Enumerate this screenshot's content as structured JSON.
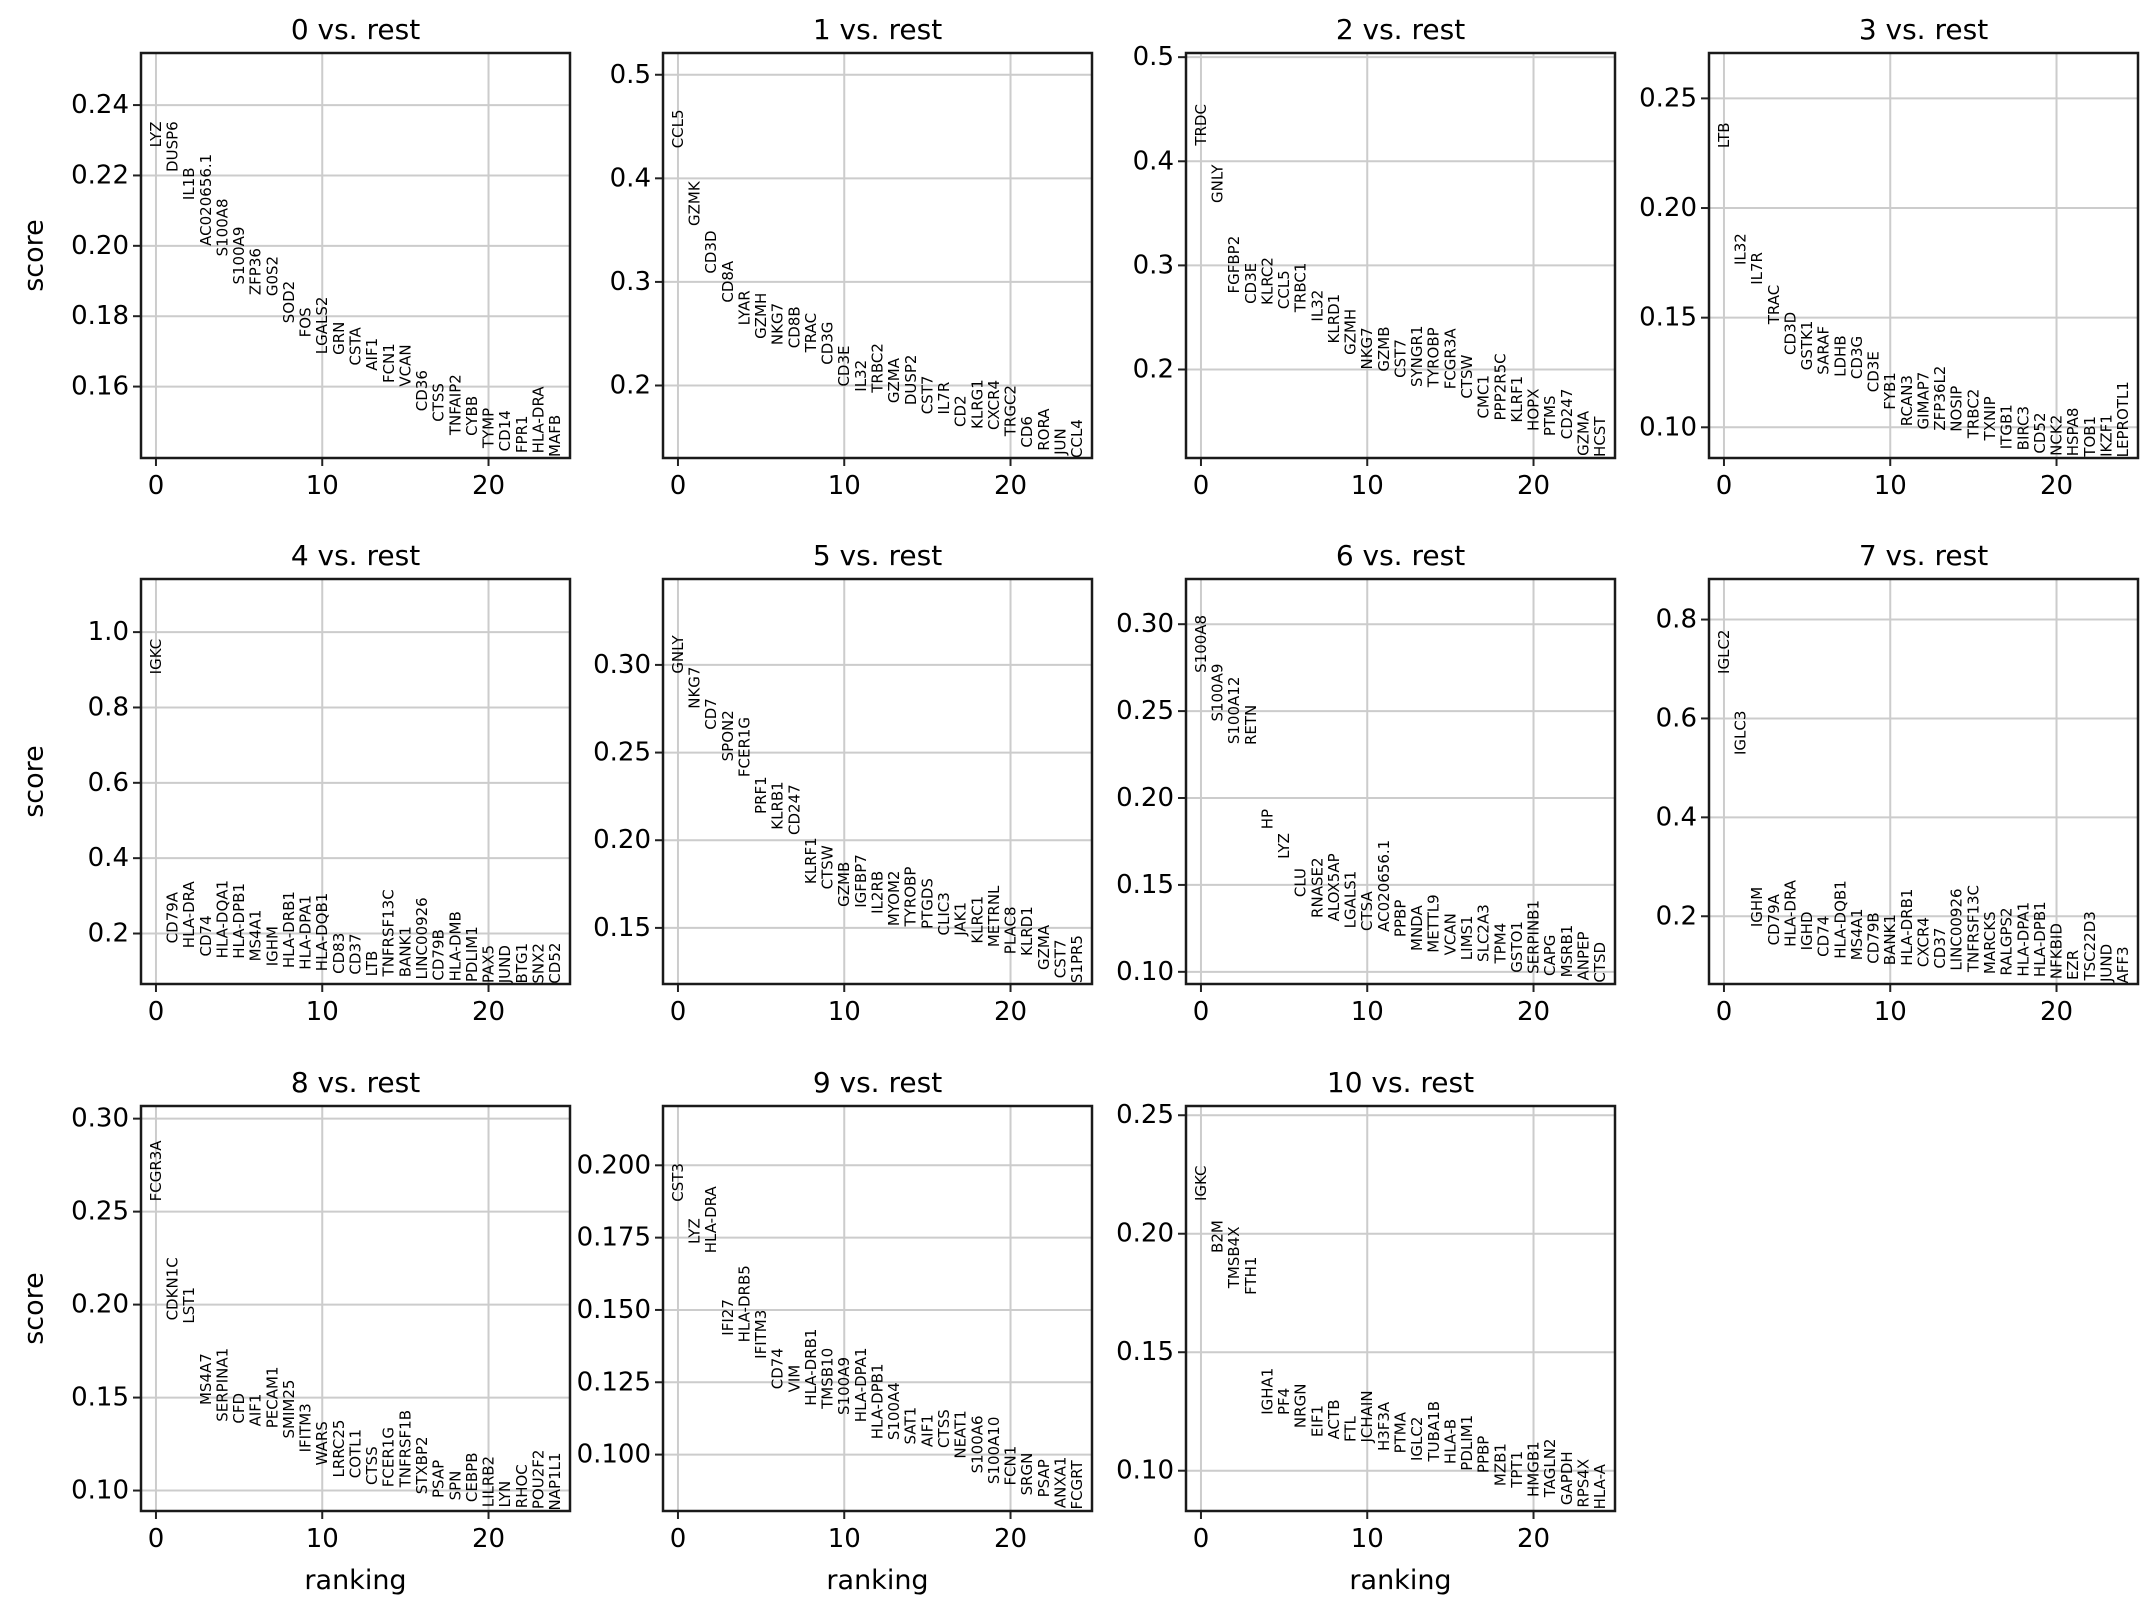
{
  "chart_data": {
    "type": "scatter",
    "layout": "grid of 11 ranked-gene panels, 4 columns",
    "xlabel": "ranking",
    "ylabel": "score",
    "xticks": [
      0,
      10,
      20
    ],
    "xlim": [
      -0.9,
      24.9
    ],
    "grid": true,
    "panels": [
      {
        "title": "0 vs. rest",
        "ylim": [
          0.1397,
          0.2548
        ],
        "yticks": [
          "0.16",
          "0.18",
          "0.20",
          "0.22",
          "0.24"
        ],
        "genes": [
          "LYZ",
          "DUSP6",
          "IL1B",
          "AC020656.1",
          "S100A8",
          "S100A9",
          "ZFP36",
          "G0S2",
          "SOD2",
          "FOS",
          "LGALS2",
          "GRN",
          "CSTA",
          "AIF1",
          "FCN1",
          "VCAN",
          "CD36",
          "CTSS",
          "TNFAIP2",
          "CYBB",
          "TYMP",
          "CD14",
          "FPR1",
          "HLA-DRA",
          "MAFB"
        ],
        "scores": [
          0.228,
          0.221,
          0.213,
          0.2,
          0.197,
          0.189,
          0.186,
          0.1857,
          0.178,
          0.174,
          0.1692,
          0.169,
          0.166,
          0.1645,
          0.161,
          0.16,
          0.153,
          0.15,
          0.1462,
          0.146,
          0.1425,
          0.1416,
          0.1411,
          0.141,
          0.14
        ]
      },
      {
        "title": "1 vs. rest",
        "ylim": [
          0.13,
          0.521
        ],
        "yticks": [
          "0.2",
          "0.3",
          "0.4",
          "0.5"
        ],
        "genes": [
          "CCL5",
          "GZMK",
          "CD3D",
          "CD8A",
          "LYAR",
          "GZMH",
          "NKG7",
          "CD8B",
          "TRAC",
          "CD3G",
          "CD3E",
          "IL32",
          "TRBC2",
          "GZMA",
          "DUSP2",
          "CST7",
          "IL7R",
          "CD2",
          "KLRG1",
          "CXCR4",
          "TRGC2",
          "CD6",
          "RORA",
          "JUN",
          "CCL4"
        ],
        "scores": [
          0.429,
          0.354,
          0.308,
          0.28,
          0.258,
          0.245,
          0.239,
          0.236,
          0.232,
          0.22,
          0.199,
          0.194,
          0.193,
          0.183,
          0.181,
          0.1722,
          0.172,
          0.16,
          0.158,
          0.157,
          0.151,
          0.14,
          0.137,
          0.133,
          0.13
        ]
      },
      {
        "title": "2 vs. rest",
        "ylim": [
          0.115,
          0.504
        ],
        "yticks": [
          "0.2",
          "0.3",
          "0.4",
          "0.5"
        ],
        "genes": [
          "TRDC",
          "GNLY",
          "FGFBP2",
          "CD3E",
          "KLRC2",
          "CCL5",
          "TRBC1",
          "IL32",
          "KLRD1",
          "GZMH",
          "NKG7",
          "GZMB",
          "CST7",
          "SYNGR1",
          "TYROBP",
          "FCGR3A",
          "CTSW",
          "CMC1",
          "PPP2R5C",
          "KLRF1",
          "HOPX",
          "PTMS",
          "CD247",
          "GZMA",
          "HCST"
        ],
        "scores": [
          0.415,
          0.36,
          0.273,
          0.263,
          0.262,
          0.258,
          0.255,
          0.246,
          0.225,
          0.214,
          0.2,
          0.198,
          0.192,
          0.1832,
          0.183,
          0.181,
          0.172,
          0.153,
          0.151,
          0.149,
          0.141,
          0.136,
          0.133,
          0.117,
          0.116
        ]
      },
      {
        "title": "3 vs. rest",
        "ylim": [
          0.086,
          0.2707
        ],
        "yticks": [
          "0.10",
          "0.15",
          "0.20",
          "0.25"
        ],
        "genes": [
          "LTB",
          "IL32",
          "IL7R",
          "TRAC",
          "CD3D",
          "GSTK1",
          "SARAF",
          "LDHB",
          "CD3G",
          "CD3E",
          "FYB1",
          "RCAN3",
          "GIMAP7",
          "ZFP36L2",
          "NOSIP",
          "TRBC2",
          "TXNIP",
          "ITGB1",
          "BIRC3",
          "CD52",
          "NCK2",
          "HSPA8",
          "TOB1",
          "IKZF1",
          "LEPROTL1"
        ],
        "scores": [
          0.2273,
          0.174,
          0.165,
          0.147,
          0.133,
          0.126,
          0.124,
          0.123,
          0.122,
          0.116,
          0.108,
          0.1005,
          0.099,
          0.0985,
          0.098,
          0.095,
          0.094,
          0.09,
          0.0895,
          0.088,
          0.087,
          0.0868,
          0.0866,
          0.0865,
          0.0863
        ]
      },
      {
        "title": "4 vs. rest",
        "ylim": [
          0.066,
          1.141
        ],
        "yticks": [
          "0.2",
          "0.4",
          "0.6",
          "0.8",
          "1.0"
        ],
        "genes": [
          "IGKC",
          "CD79A",
          "HLA-DRA",
          "CD74",
          "HLA-DQA1",
          "HLA-DPB1",
          "MS4A1",
          "IGHM",
          "HLA-DRB1",
          "HLA-DPA1",
          "HLA-DQB1",
          "CD83",
          "CD37",
          "LTB",
          "TNFRSF13C",
          "BANK1",
          "LINC00926",
          "CD79B",
          "HLA-DMB",
          "PDLIM1",
          "PAX5",
          "JUND",
          "BTG1",
          "SNX2",
          "CD52"
        ],
        "scores": [
          0.888,
          0.174,
          0.161,
          0.139,
          0.134,
          0.133,
          0.126,
          0.113,
          0.108,
          0.104,
          0.1,
          0.093,
          0.091,
          0.0862,
          0.086,
          0.084,
          0.078,
          0.075,
          0.073,
          0.071,
          0.0685,
          0.068,
          0.0675,
          0.067,
          0.0668
        ]
      },
      {
        "title": "5 vs. rest",
        "ylim": [
          0.118,
          0.349
        ],
        "yticks": [
          "0.15",
          "0.20",
          "0.25",
          "0.30"
        ],
        "genes": [
          "GNLY",
          "NKG7",
          "CD7",
          "SPON2",
          "FCER1G",
          "PRF1",
          "KLRB1",
          "CD247",
          "KLRF1",
          "CTSW",
          "GZMB",
          "IGFBP7",
          "IL2RB",
          "MYOM2",
          "TYROBP",
          "PTGDS",
          "CLIC3",
          "JAK1",
          "KLRC1",
          "METRNL",
          "PLAC8",
          "KLRD1",
          "GZMA",
          "CST7",
          "S1PR5"
        ],
        "scores": [
          0.295,
          0.275,
          0.263,
          0.245,
          0.236,
          0.215,
          0.206,
          0.203,
          0.175,
          0.172,
          0.162,
          0.1615,
          0.158,
          0.151,
          0.1508,
          0.1494,
          0.1457,
          0.1455,
          0.141,
          0.139,
          0.135,
          0.134,
          0.126,
          0.1213,
          0.1185
        ]
      },
      {
        "title": "6 vs. rest",
        "ylim": [
          0.093,
          0.326
        ],
        "yticks": [
          "0.10",
          "0.15",
          "0.20",
          "0.25",
          "0.30"
        ],
        "genes": [
          "S100A8",
          "S100A9",
          "S100A12",
          "RETN",
          "HP",
          "LYZ",
          "CLU",
          "RNASE2",
          "ALOX5AP",
          "LGALS1",
          "CTSA",
          "AC020656.1",
          "PPBP",
          "MNDA",
          "METTL9",
          "VCAN",
          "LIMS1",
          "SLC2A3",
          "TPM4",
          "GSTO1",
          "SERPINB1",
          "CAPG",
          "MSRB1",
          "ANPEP",
          "CTSD"
        ],
        "scores": [
          0.272,
          0.244,
          0.231,
          0.2305,
          0.182,
          0.165,
          0.143,
          0.131,
          0.129,
          0.125,
          0.1235,
          0.123,
          0.12,
          0.112,
          0.111,
          0.1095,
          0.1067,
          0.1057,
          0.1048,
          0.0995,
          0.0988,
          0.0976,
          0.0968,
          0.095,
          0.0938
        ]
      },
      {
        "title": "7 vs. rest",
        "ylim": [
          0.063,
          0.882
        ],
        "yticks": [
          "0.2",
          "0.4",
          "0.6",
          "0.8"
        ],
        "genes": [
          "IGLC2",
          "IGLC3",
          "IGHM",
          "CD79A",
          "HLA-DRA",
          "IGHD",
          "CD74",
          "HLA-DQB1",
          "MS4A1",
          "CD79B",
          "BANK1",
          "HLA-DRB1",
          "CXCR4",
          "CD37",
          "LINC00926",
          "TNFRSF13C",
          "MARCKS",
          "RALGPS2",
          "HLA-DPA1",
          "HLA-DPB1",
          "NFKBID",
          "EZR",
          "TSC22D3",
          "JUND",
          "AFF3"
        ],
        "scores": [
          0.69,
          0.526,
          0.178,
          0.141,
          0.138,
          0.131,
          0.118,
          0.114,
          0.111,
          0.104,
          0.101,
          0.1,
          0.097,
          0.094,
          0.09,
          0.087,
          0.083,
          0.08,
          0.078,
          0.077,
          0.073,
          0.071,
          0.07,
          0.067,
          0.064
        ]
      },
      {
        "title": "8 vs. rest",
        "ylim": [
          0.089,
          0.3068
        ],
        "yticks": [
          "0.10",
          "0.15",
          "0.20",
          "0.25",
          "0.30"
        ],
        "genes": [
          "FCGR3A",
          "CDKN1C",
          "LST1",
          "MS4A7",
          "SERPINA1",
          "CFD",
          "AIF1",
          "PECAM1",
          "SMIM25",
          "IFITM3",
          "WARS",
          "LRRC25",
          "COTL1",
          "CTSS",
          "FCER1G",
          "TNFRSF1B",
          "STXBP2",
          "PSAP",
          "SPN",
          "CEBPB",
          "LILRB2",
          "LYN",
          "RHOC",
          "POU2F2",
          "NAP1L1"
        ],
        "scores": [
          0.2555,
          0.1915,
          0.1898,
          0.146,
          0.137,
          0.136,
          0.1345,
          0.1335,
          0.128,
          0.1205,
          0.1135,
          0.107,
          0.1066,
          0.103,
          0.1018,
          0.1017,
          0.098,
          0.096,
          0.0947,
          0.0938,
          0.091,
          0.0909,
          0.0905,
          0.09,
          0.0893
        ]
      },
      {
        "title": "9 vs. rest",
        "ylim": [
          0.0805,
          0.2205
        ],
        "yticks": [
          "0.100",
          "0.125",
          "0.150",
          "0.175",
          "0.200"
        ],
        "genes": [
          "CST3",
          "LYZ",
          "HLA-DRA",
          "IFI27",
          "HLA-DRB5",
          "IFITM3",
          "CD74",
          "VIM",
          "HLA-DRB1",
          "TMSB10",
          "S100A9",
          "HLA-DPA1",
          "HLA-DPB1",
          "S100A4",
          "SAT1",
          "AIF1",
          "CTSS",
          "NEAT1",
          "S100A6",
          "S100A10",
          "FCN1",
          "SRGN",
          "PSAP",
          "ANXA1",
          "FCGRT"
        ],
        "scores": [
          0.1874,
          0.1728,
          0.1696,
          0.1411,
          0.1388,
          0.1331,
          0.1226,
          0.1215,
          0.1169,
          0.1158,
          0.1137,
          0.1112,
          0.1053,
          0.105,
          0.1035,
          0.1026,
          0.1023,
          0.0986,
          0.0935,
          0.0898,
          0.0893,
          0.0859,
          0.0852,
          0.0815,
          0.081
        ]
      },
      {
        "title": "10 vs. rest",
        "ylim": [
          0.083,
          0.2539
        ],
        "yticks": [
          "0.10",
          "0.15",
          "0.20",
          "0.25"
        ],
        "genes": [
          "IGKC",
          "B2M",
          "TMSB4X",
          "FTH1",
          "IGHA1",
          "PF4",
          "NRGN",
          "EIF1",
          "ACTB",
          "FTL",
          "JCHAIN",
          "H3F3A",
          "PTMA",
          "IGLC2",
          "TUBA1B",
          "HLA-B",
          "PDLIM1",
          "PPBP",
          "MZB1",
          "TPT1",
          "HMGB1",
          "TAGLN2",
          "GAPDH",
          "RPS4X",
          "HLA-A"
        ],
        "scores": [
          0.2138,
          0.1919,
          0.177,
          0.1742,
          0.1236,
          0.1235,
          0.118,
          0.1142,
          0.1132,
          0.1121,
          0.1119,
          0.1083,
          0.1073,
          0.1041,
          0.1039,
          0.1028,
          0.1,
          0.099,
          0.0935,
          0.0928,
          0.0889,
          0.0888,
          0.0855,
          0.0844,
          0.0837
        ]
      }
    ]
  }
}
